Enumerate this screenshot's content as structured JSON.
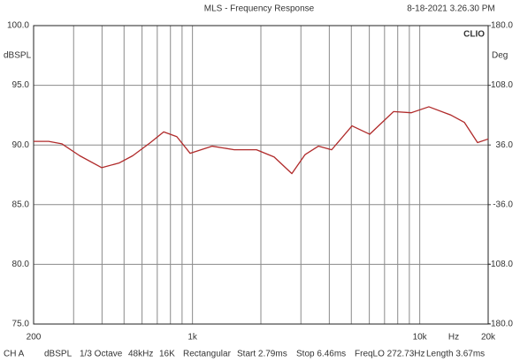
{
  "chart_data": {
    "type": "line",
    "title": "MLS - Frequency Response",
    "timestamp": "8-18-2021 3.26.30 PM",
    "brand": "CLIO",
    "y_label": "dBSPL",
    "y2_label": "Deg",
    "x_unit_label": "Hz",
    "xscale": "log",
    "xlim": [
      200,
      20000
    ],
    "xticks": [
      200,
      {
        "value": 1000,
        "label": "1k"
      },
      {
        "value": 10000,
        "label": "10k"
      },
      {
        "value": 20000,
        "label": "20k"
      }
    ],
    "x_grid_lines": [
      300,
      400,
      500,
      600,
      700,
      800,
      900,
      2000,
      3000,
      4000,
      5000,
      6000,
      7000,
      8000,
      9000
    ],
    "ylim": [
      75,
      100
    ],
    "yticks": [
      {
        "value": 75,
        "label": "75.0"
      },
      {
        "value": 80,
        "label": "80.0"
      },
      {
        "value": 85,
        "label": "85.0"
      },
      {
        "value": 90,
        "label": "90.0"
      },
      {
        "value": 95,
        "label": "95.0"
      },
      {
        "value": 100,
        "label": "100.0"
      }
    ],
    "y2lim": [
      -180,
      180
    ],
    "y2ticks": [
      {
        "value": -180,
        "label": "-180.0"
      },
      {
        "value": -108,
        "label": "-108.0"
      },
      {
        "value": -36,
        "label": "-36.0"
      },
      {
        "value": 36,
        "label": "36.0"
      },
      {
        "value": 108,
        "label": "108.0"
      },
      {
        "value": 180,
        "label": "180.0"
      }
    ],
    "grid": true,
    "x": [
      200,
      233,
      266,
      319,
      399,
      477,
      546,
      653,
      747,
      853,
      977,
      1222,
      1528,
      1913,
      2286,
      2737,
      3131,
      3581,
      4097,
      5035,
      6025,
      7672,
      9163,
      10966,
      13734,
      15707,
      17960,
      20000
    ],
    "series": [
      {
        "color": "#b02a2a",
        "values": [
          90.3,
          90.3,
          90.1,
          89.1,
          88.1,
          88.5,
          89.1,
          90.2,
          91.1,
          90.7,
          89.3,
          89.9,
          89.6,
          89.6,
          89.0,
          87.6,
          89.2,
          89.9,
          89.6,
          91.6,
          90.9,
          92.8,
          92.7,
          93.2,
          92.5,
          91.9,
          90.2,
          90.5
        ]
      }
    ],
    "status_bar": [
      "CH A",
      "dBSPL",
      "1/3 Octave",
      "48kHz",
      "16K",
      "Rectangular",
      "Start 2.79ms",
      "Stop 6.46ms",
      "FreqLO 272.73Hz",
      "Length 3.67ms"
    ]
  }
}
